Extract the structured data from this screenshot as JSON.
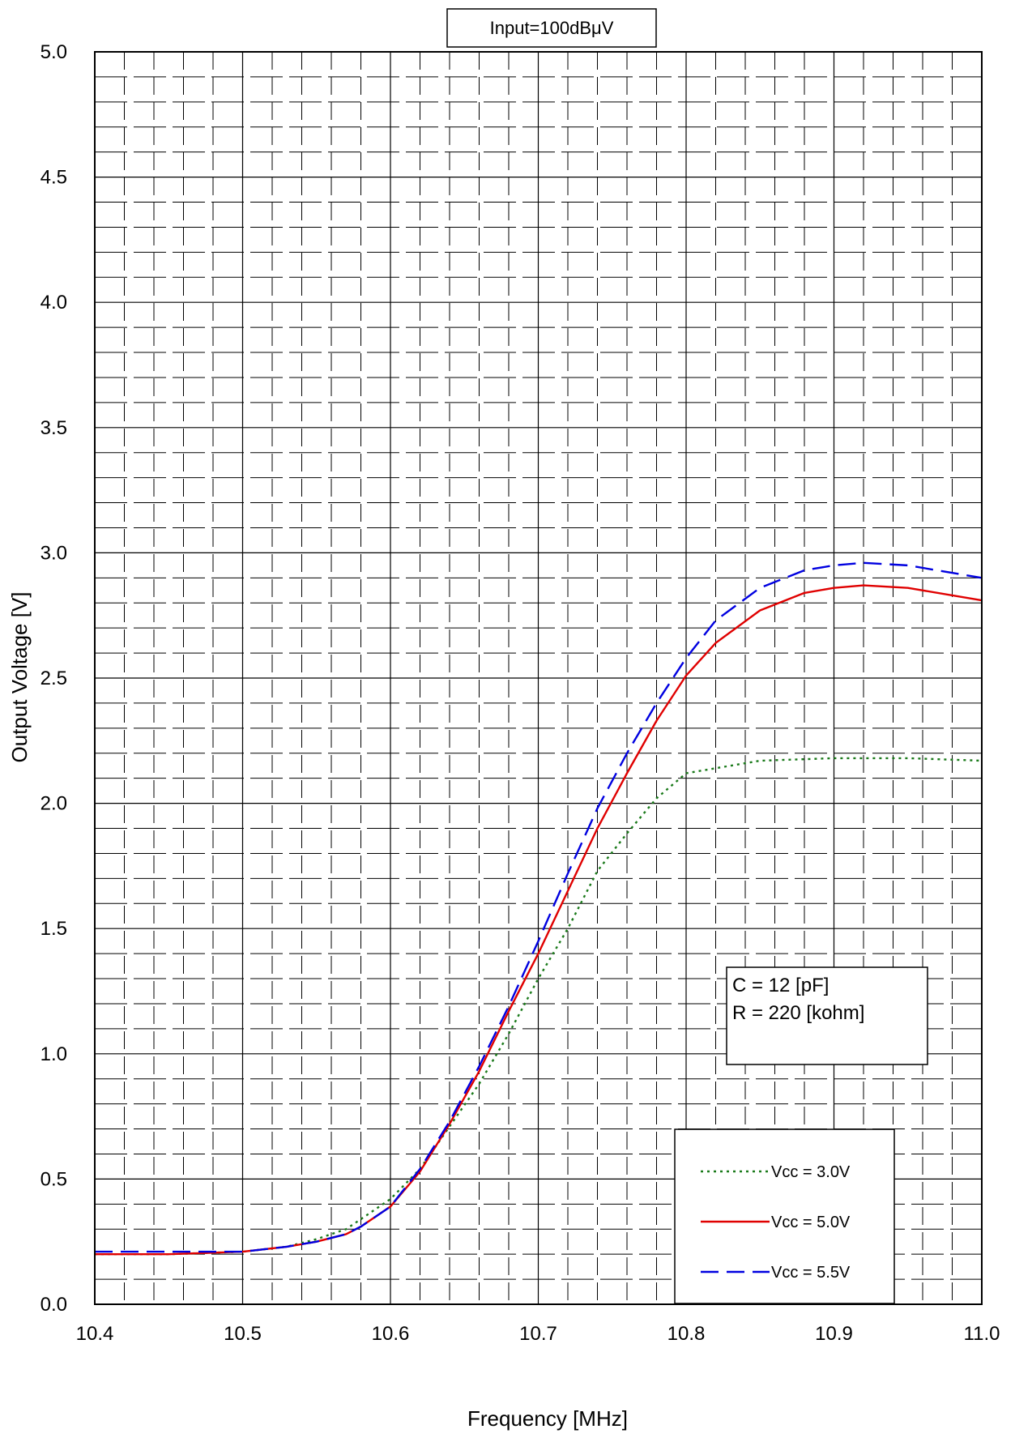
{
  "chart_data": {
    "type": "line",
    "title": "Input=100dBμV",
    "xlabel": "Frequency [MHz]",
    "ylabel": "Output Voltage [V]",
    "xlim": [
      10.4,
      11.0
    ],
    "ylim": [
      0.0,
      5.0
    ],
    "x_major_ticks": [
      "10.4",
      "10.5",
      "10.6",
      "10.7",
      "10.8",
      "10.9",
      "11.0"
    ],
    "y_major_ticks": [
      "0.0",
      "0.5",
      "1.0",
      "1.5",
      "2.0",
      "2.5",
      "3.0",
      "3.5",
      "4.0",
      "4.5",
      "5.0"
    ],
    "grid": true,
    "legend_position": "bottom-right",
    "annotation": [
      "C = 12   [pF]",
      "R = 220 [kohm]"
    ],
    "series": [
      {
        "name": "Vcc = 3.0V",
        "color": "#1a7a1a",
        "dash": "dotted",
        "x": [
          10.4,
          10.45,
          10.5,
          10.53,
          10.55,
          10.57,
          10.58,
          10.6,
          10.62,
          10.64,
          10.66,
          10.68,
          10.7,
          10.72,
          10.74,
          10.76,
          10.78,
          10.8,
          10.85,
          10.9,
          10.95,
          11.0
        ],
        "y": [
          0.2,
          0.2,
          0.21,
          0.23,
          0.26,
          0.3,
          0.34,
          0.42,
          0.54,
          0.71,
          0.88,
          1.08,
          1.3,
          1.5,
          1.73,
          1.88,
          2.02,
          2.12,
          2.17,
          2.18,
          2.18,
          2.17
        ]
      },
      {
        "name": "Vcc = 5.0V",
        "color": "#e00000",
        "dash": "solid",
        "x": [
          10.4,
          10.45,
          10.5,
          10.53,
          10.55,
          10.57,
          10.58,
          10.6,
          10.62,
          10.64,
          10.66,
          10.68,
          10.7,
          10.72,
          10.74,
          10.76,
          10.78,
          10.8,
          10.82,
          10.85,
          10.88,
          10.9,
          10.92,
          10.95,
          11.0
        ],
        "y": [
          0.2,
          0.2,
          0.21,
          0.23,
          0.25,
          0.28,
          0.31,
          0.39,
          0.53,
          0.72,
          0.93,
          1.17,
          1.4,
          1.65,
          1.9,
          2.12,
          2.33,
          2.51,
          2.64,
          2.77,
          2.84,
          2.86,
          2.87,
          2.86,
          2.81
        ]
      },
      {
        "name": "Vcc = 5.5V",
        "color": "#0000e0",
        "dash": "dashed",
        "x": [
          10.4,
          10.45,
          10.5,
          10.53,
          10.55,
          10.57,
          10.58,
          10.6,
          10.62,
          10.64,
          10.66,
          10.68,
          10.7,
          10.72,
          10.74,
          10.76,
          10.78,
          10.8,
          10.82,
          10.85,
          10.88,
          10.9,
          10.92,
          10.95,
          11.0
        ],
        "y": [
          0.21,
          0.21,
          0.21,
          0.23,
          0.25,
          0.28,
          0.31,
          0.39,
          0.54,
          0.73,
          0.95,
          1.19,
          1.45,
          1.72,
          1.98,
          2.2,
          2.4,
          2.58,
          2.73,
          2.86,
          2.93,
          2.95,
          2.96,
          2.95,
          2.9
        ]
      }
    ]
  }
}
